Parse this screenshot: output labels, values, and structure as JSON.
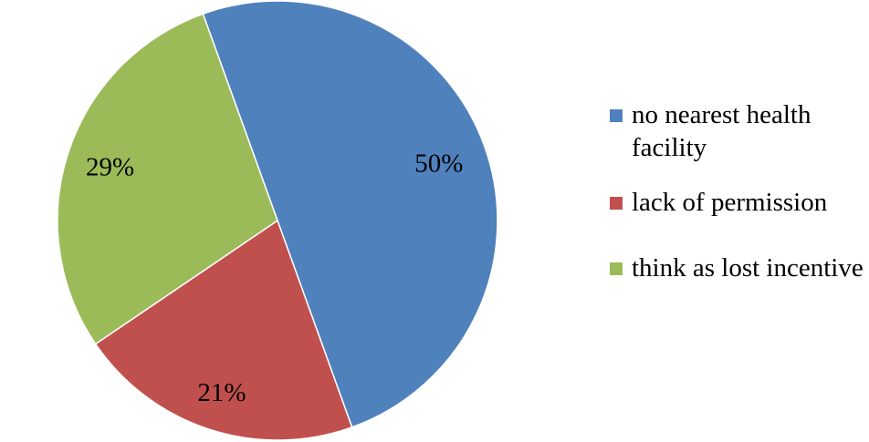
{
  "chart_data": {
    "type": "pie",
    "title": "",
    "start_angle_deg": -19.8,
    "direction": "clockwise",
    "legend_position": "right",
    "slices": [
      {
        "label": "no nearest health facility",
        "value": 50,
        "data_label": "50%",
        "color": "#4F81BD"
      },
      {
        "label": "lack of permission",
        "value": 21,
        "data_label": "21%",
        "color": "#C0504D"
      },
      {
        "label": "think as lost incentive",
        "value": 29,
        "data_label": "29%",
        "color": "#9BBB59"
      }
    ]
  }
}
